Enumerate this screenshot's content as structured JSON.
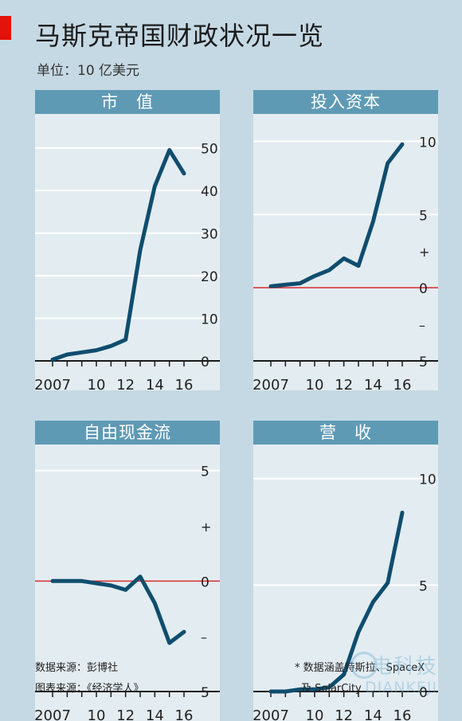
{
  "title": "马斯克帝国财政状况一览",
  "subtitle": "单位：10 亿美元",
  "colors": {
    "line": "#0f4d6e",
    "zero_line": "#d62d2d",
    "header": "#5f9ab5",
    "panel_bg": "#e3ecf1"
  },
  "chart_data": [
    {
      "type": "line",
      "title": "市　值",
      "x": [
        2007,
        2008,
        2009,
        2010,
        2011,
        2012,
        2013,
        2014,
        2015,
        2016
      ],
      "values": [
        0.3,
        1.5,
        2,
        2.5,
        3.5,
        5,
        26,
        41,
        49.5,
        44
      ],
      "ylim": [
        0,
        55
      ],
      "yticks": [
        0,
        10,
        20,
        30,
        40,
        50
      ],
      "ytick_labels": [
        "0",
        "10",
        "20",
        "30",
        "40",
        "50"
      ],
      "xtick_labels": [
        {
          "x": 2007,
          "label": "2007"
        },
        {
          "x": 2010,
          "label": "10"
        },
        {
          "x": 2012,
          "label": "12"
        },
        {
          "x": 2014,
          "label": "14"
        },
        {
          "x": 2016,
          "label": "16"
        }
      ]
    },
    {
      "type": "line",
      "title": "投入资本",
      "x": [
        2007,
        2008,
        2009,
        2010,
        2011,
        2012,
        2013,
        2014,
        2015,
        2016
      ],
      "values": [
        0.1,
        0.2,
        0.3,
        0.8,
        1.2,
        2,
        1.5,
        4.5,
        8.5,
        9.8
      ],
      "ylim": [
        -5,
        11
      ],
      "zero_line": true,
      "yticks": [
        -5,
        -2.5,
        0,
        2.5,
        5,
        10
      ],
      "ytick_labels": [
        "5",
        "–",
        "0",
        "+",
        "5",
        "10"
      ],
      "xtick_labels": [
        {
          "x": 2007,
          "label": "2007"
        },
        {
          "x": 2010,
          "label": "10"
        },
        {
          "x": 2012,
          "label": "12"
        },
        {
          "x": 2014,
          "label": "14"
        },
        {
          "x": 2016,
          "label": "16"
        }
      ]
    },
    {
      "type": "line",
      "title": "自由现金流",
      "x": [
        2007,
        2008,
        2009,
        2010,
        2011,
        2012,
        2013,
        2014,
        2015,
        2016
      ],
      "values": [
        0,
        0,
        0,
        -0.1,
        -0.2,
        -0.4,
        0.2,
        -1,
        -2.8,
        -2.3
      ],
      "ylim": [
        -5,
        5.6
      ],
      "zero_line": true,
      "yticks": [
        -5,
        -2.5,
        0,
        2.5,
        5
      ],
      "ytick_labels": [
        "5",
        "–",
        "0",
        "+",
        "5"
      ],
      "xtick_labels": [
        {
          "x": 2007,
          "label": "2007"
        },
        {
          "x": 2010,
          "label": "10"
        },
        {
          "x": 2012,
          "label": "12"
        },
        {
          "x": 2014,
          "label": "14"
        },
        {
          "x": 2016,
          "label": "16"
        }
      ]
    },
    {
      "type": "line",
      "title": "营　收",
      "x": [
        2007,
        2008,
        2009,
        2010,
        2011,
        2012,
        2013,
        2014,
        2015,
        2016
      ],
      "values": [
        0,
        0,
        0.1,
        0.1,
        0.2,
        0.8,
        2.8,
        4.2,
        5.1,
        8.4
      ],
      "ylim": [
        0,
        11
      ],
      "yticks": [
        0,
        5,
        10
      ],
      "ytick_labels": [
        "0",
        "5",
        "10"
      ],
      "xtick_labels": [
        {
          "x": 2007,
          "label": "2007"
        },
        {
          "x": 2010,
          "label": "10"
        },
        {
          "x": 2012,
          "label": "12"
        },
        {
          "x": 2014,
          "label": "14"
        },
        {
          "x": 2016,
          "label": "16"
        }
      ]
    }
  ],
  "footer": {
    "source": "数据来源：彭博社",
    "chart_source": "图表来源：《经济学人》",
    "note_line1": "* 数据涵盖特斯拉、SpaceX",
    "note_line2": "及 SolarCity"
  },
  "watermark": {
    "cn": "电科技",
    "en": "DIANKEJI"
  }
}
